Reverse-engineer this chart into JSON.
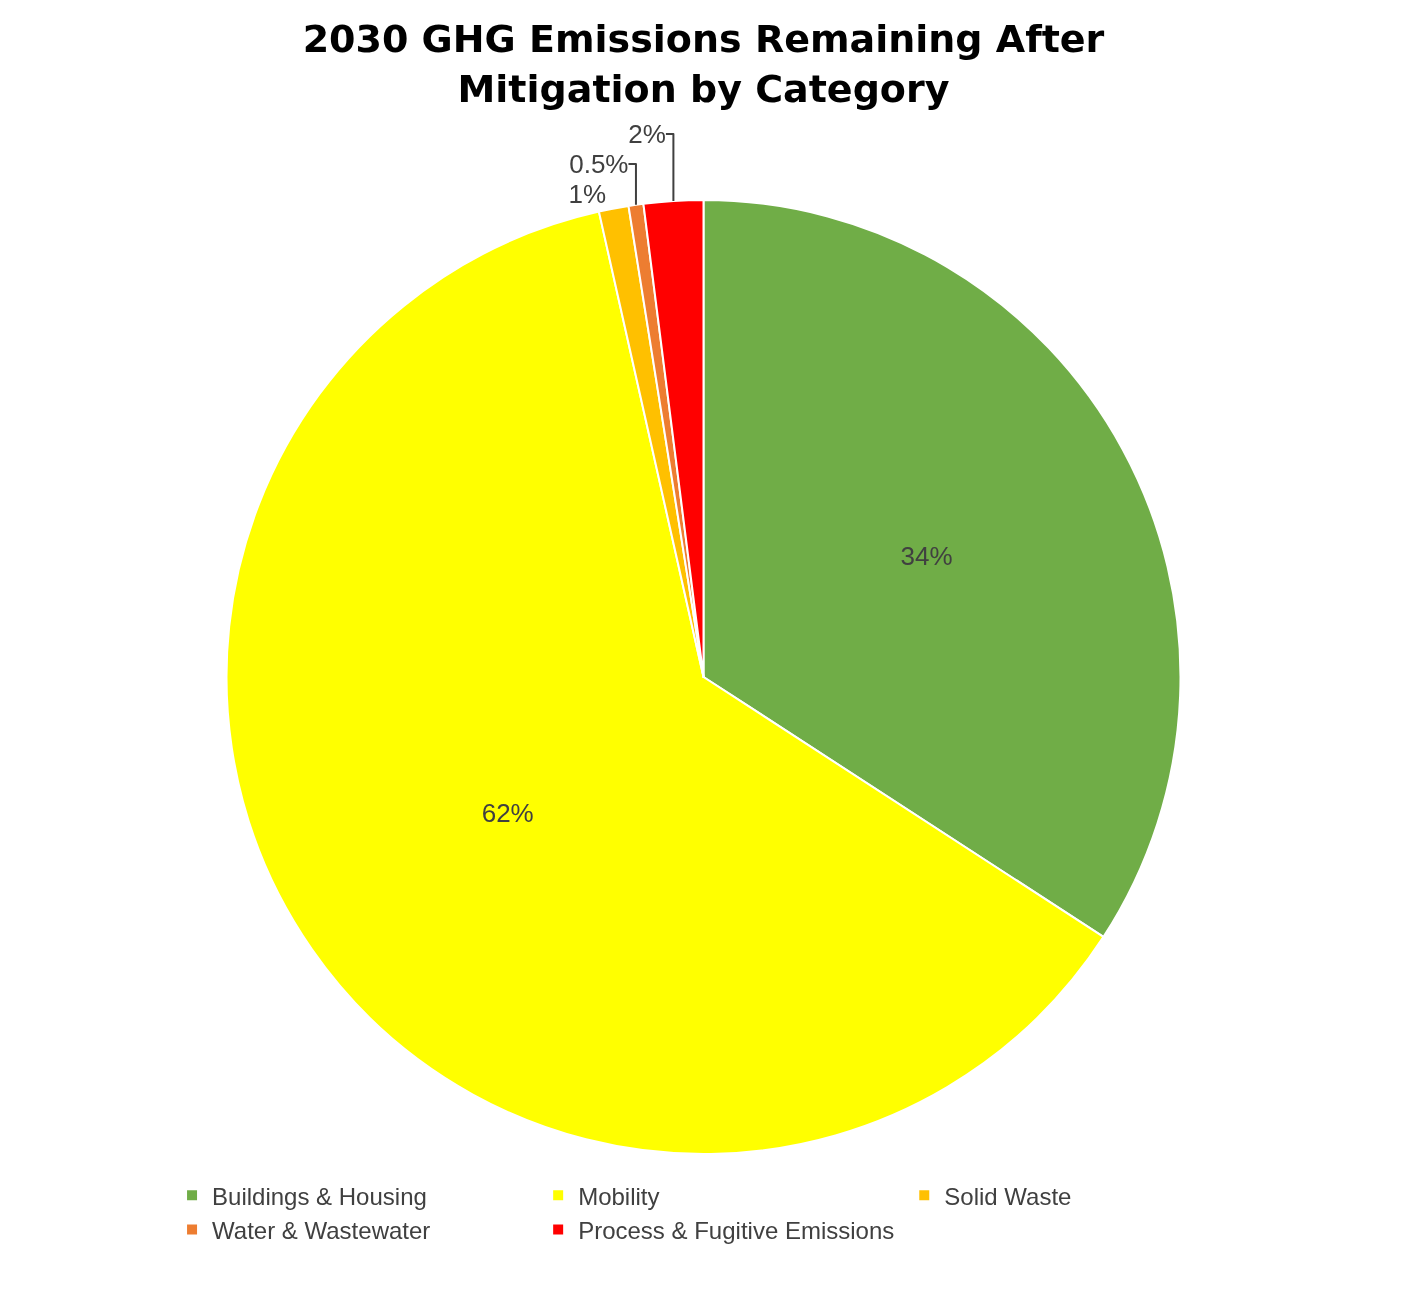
{
  "chart_data": {
    "type": "pie",
    "title": "2030 GHG Emissions Remaining After Mitigation by Category",
    "categories": [
      "Buildings & Housing",
      "Mobility",
      "Solid Waste",
      "Water & Wastewater",
      "Process & Fugitive Emissions"
    ],
    "values": [
      34,
      62,
      1,
      0.5,
      2
    ],
    "value_labels": [
      "34%",
      "62%",
      "1%",
      "0.5%",
      "2%"
    ],
    "colors": [
      "#70ad47",
      "#ffff00",
      "#ffc000",
      "#ed7d31",
      "#ff0000"
    ],
    "legend": "bottom"
  }
}
